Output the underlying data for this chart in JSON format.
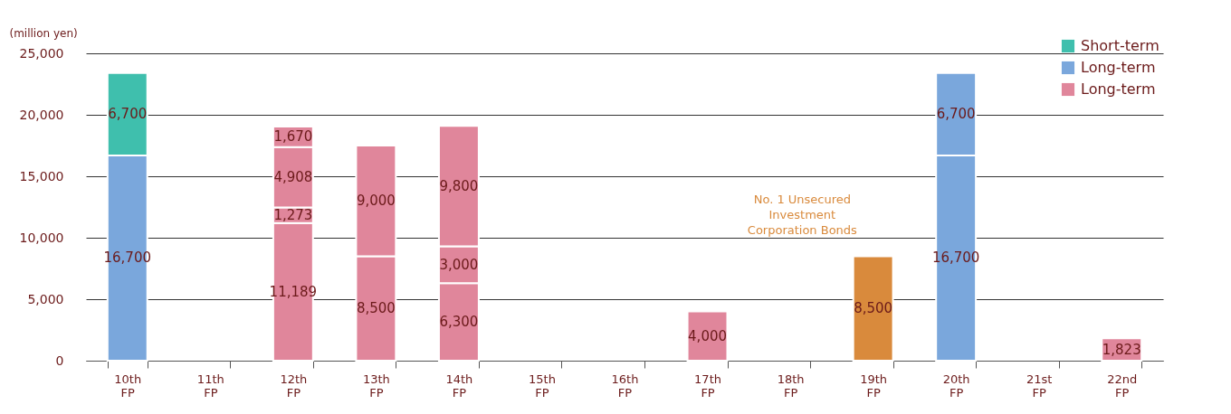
{
  "chart_data": {
    "type": "bar",
    "stacked": true,
    "ylabel": "(million yen)",
    "categories": [
      "10th FP",
      "11th FP",
      "12th FP",
      "13th FP",
      "14th FP",
      "15th FP",
      "16th FP",
      "17th FP",
      "18th FP",
      "19th FP",
      "20th FP",
      "21st FP",
      "22nd FP"
    ],
    "series": [
      {
        "name": "Long-term",
        "color": "#e0869b",
        "values": [
          null,
          null,
          11189,
          8500,
          6300,
          null,
          null,
          4000,
          null,
          null,
          null,
          null,
          1823
        ],
        "value_labels": [
          null,
          null,
          "11,189",
          "8,500",
          "6,300",
          null,
          null,
          "4,000",
          null,
          null,
          null,
          null,
          "1,823"
        ]
      },
      {
        "name": "Long-term",
        "color": "#7aa7dc",
        "values": [
          16700,
          null,
          null,
          null,
          null,
          null,
          null,
          null,
          null,
          null,
          16700,
          null,
          null
        ],
        "value_labels": [
          "16,700",
          null,
          null,
          null,
          null,
          null,
          null,
          null,
          null,
          null,
          "16,700",
          null,
          null
        ]
      },
      {
        "color": "#d98a3c",
        "values": [
          null,
          null,
          null,
          null,
          null,
          null,
          null,
          null,
          null,
          8500,
          null,
          null,
          null
        ],
        "value_labels": [
          null,
          null,
          null,
          null,
          null,
          null,
          null,
          null,
          null,
          "8,500",
          null,
          null,
          null
        ]
      },
      {
        "color": "#e0869b",
        "values": [
          null,
          null,
          1273,
          null,
          3000,
          null,
          null,
          null,
          null,
          null,
          null,
          null,
          null
        ],
        "value_labels": [
          null,
          null,
          "1,273",
          null,
          "3,000",
          null,
          null,
          null,
          null,
          null,
          null,
          null,
          null
        ]
      },
      {
        "color": "#e0869b",
        "values": [
          null,
          null,
          4908,
          9000,
          9800,
          null,
          null,
          null,
          null,
          null,
          null,
          null,
          null
        ],
        "value_labels": [
          null,
          null,
          "4,908",
          "9,000",
          "9,800",
          null,
          null,
          null,
          null,
          null,
          null,
          null,
          null
        ]
      },
      {
        "color": "#e0869b",
        "values": [
          null,
          null,
          1670,
          null,
          null,
          null,
          null,
          null,
          null,
          null,
          null,
          null,
          null
        ],
        "value_labels": [
          null,
          null,
          "1,670",
          null,
          null,
          null,
          null,
          null,
          null,
          null,
          null,
          null,
          null
        ]
      },
      {
        "color": "#7aa7dc",
        "values": [
          null,
          null,
          null,
          null,
          null,
          null,
          null,
          null,
          null,
          null,
          6700,
          null,
          null
        ],
        "value_labels": [
          null,
          null,
          null,
          null,
          null,
          null,
          null,
          null,
          null,
          null,
          "6,700",
          null,
          null
        ]
      },
      {
        "name": "Short-term",
        "color": "#3fbfad",
        "values": [
          6700,
          null,
          null,
          null,
          null,
          null,
          null,
          null,
          null,
          null,
          null,
          null,
          null
        ],
        "value_labels": [
          "6,700",
          null,
          null,
          null,
          null,
          null,
          null,
          null,
          null,
          null,
          null,
          null,
          null
        ]
      }
    ],
    "ylim": [
      0,
      25000
    ],
    "yticks": [
      0,
      {
        "value": 5000,
        "label": "5,000"
      },
      {
        "value": 10000,
        "label": "10,000"
      },
      {
        "value": 15000,
        "label": "15,000"
      },
      {
        "value": 20000,
        "label": "20,000"
      },
      {
        "value": 25000,
        "label": "25,000"
      }
    ],
    "grid": "y",
    "legend": "top right",
    "annotations": [
      "No. 1 Unsecured Investment Corporation Bonds"
    ]
  }
}
